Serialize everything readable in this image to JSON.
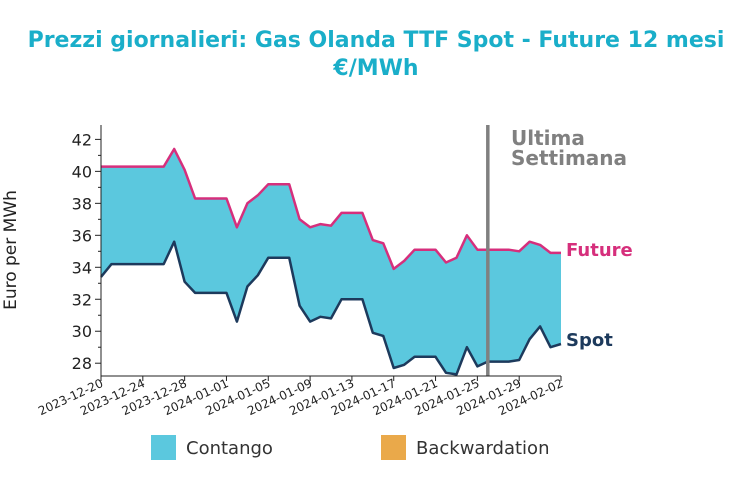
{
  "chart_data": {
    "type": "area",
    "title_line1": "Prezzi giornalieri: Gas Olanda TTF Spot - Future 12 mesi",
    "title_line2": "€/MWh",
    "ylabel": "Euro per MWh",
    "ylim": [
      27.2,
      42.9
    ],
    "yticks": [
      28,
      30,
      32,
      34,
      36,
      38,
      40,
      42
    ],
    "x_start": "2023-12-20",
    "x_end": "2024-02-02",
    "xticks": [
      "2023-12-20",
      "2023-12-24",
      "2023-12-28",
      "2024-01-01",
      "2024-01-05",
      "2024-01-09",
      "2024-01-13",
      "2024-01-17",
      "2024-01-21",
      "2024-01-25",
      "2024-01-29",
      "2024-02-02"
    ],
    "x": [
      "2023-12-20",
      "2023-12-21",
      "2023-12-22",
      "2023-12-23",
      "2023-12-24",
      "2023-12-25",
      "2023-12-26",
      "2023-12-27",
      "2023-12-28",
      "2023-12-29",
      "2023-12-30",
      "2023-12-31",
      "2024-01-01",
      "2024-01-02",
      "2024-01-03",
      "2024-01-04",
      "2024-01-05",
      "2024-01-06",
      "2024-01-07",
      "2024-01-08",
      "2024-01-09",
      "2024-01-10",
      "2024-01-11",
      "2024-01-12",
      "2024-01-13",
      "2024-01-14",
      "2024-01-15",
      "2024-01-16",
      "2024-01-17",
      "2024-01-18",
      "2024-01-19",
      "2024-01-20",
      "2024-01-21",
      "2024-01-22",
      "2024-01-23",
      "2024-01-24",
      "2024-01-25",
      "2024-01-26",
      "2024-01-27",
      "2024-01-28",
      "2024-01-29",
      "2024-01-30",
      "2024-01-31",
      "2024-02-01",
      "2024-02-02"
    ],
    "series": [
      {
        "name": "Future",
        "color": "#d62f7c",
        "values": [
          40.3,
          40.3,
          40.3,
          40.3,
          40.3,
          40.3,
          40.3,
          41.4,
          40.1,
          38.3,
          38.3,
          38.3,
          38.3,
          36.5,
          38.0,
          38.5,
          39.2,
          39.2,
          39.2,
          37.0,
          36.5,
          36.7,
          36.6,
          37.4,
          37.4,
          37.4,
          35.7,
          35.5,
          33.9,
          34.4,
          35.1,
          35.1,
          35.1,
          34.3,
          34.6,
          36.0,
          35.1,
          35.1,
          35.1,
          35.1,
          35.0,
          35.6,
          35.4,
          34.9,
          34.9
        ]
      },
      {
        "name": "Spot",
        "color": "#1d3a5c",
        "values": [
          33.4,
          34.2,
          34.2,
          34.2,
          34.2,
          34.2,
          34.2,
          35.6,
          33.1,
          32.4,
          32.4,
          32.4,
          32.4,
          30.6,
          32.8,
          33.5,
          34.6,
          34.6,
          34.6,
          31.6,
          30.6,
          30.9,
          30.8,
          32.0,
          32.0,
          32.0,
          29.9,
          29.7,
          27.7,
          27.9,
          28.4,
          28.4,
          28.4,
          27.4,
          27.3,
          29.0,
          27.8,
          28.1,
          28.1,
          28.1,
          28.2,
          29.5,
          30.3,
          29.0,
          29.2
        ]
      }
    ],
    "fill_between": {
      "contango_color": "#5bc8de",
      "backwardation_color": "#eaa94a"
    },
    "legend": [
      {
        "label": "Contango",
        "color": "#5bc8de"
      },
      {
        "label": "Backwardation",
        "color": "#eaa94a"
      }
    ],
    "legend_position": "bottom",
    "annotation": {
      "line1": "Ultima",
      "line2": "Settimana",
      "date": "2024-01-26",
      "color": "#808080"
    },
    "series_labels": {
      "future": "Future",
      "spot": "Spot"
    },
    "grid": false
  }
}
